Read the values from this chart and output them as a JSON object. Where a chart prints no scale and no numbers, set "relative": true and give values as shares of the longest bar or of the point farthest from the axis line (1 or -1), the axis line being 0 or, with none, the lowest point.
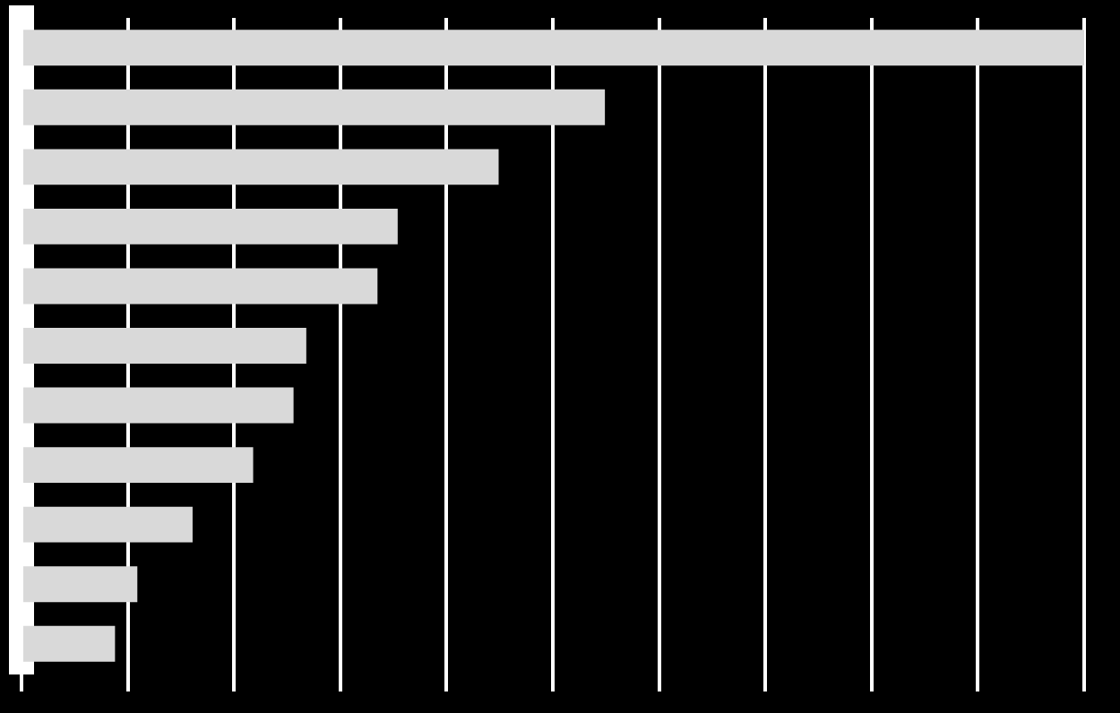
{
  "chart_data": {
    "type": "bar",
    "orientation": "horizontal",
    "relative": true,
    "grid": "x",
    "legend": false,
    "categories": [
      null,
      null,
      null,
      null,
      null,
      null,
      null,
      null,
      null,
      null,
      null
    ],
    "values": [
      1,
      0.549,
      0.449,
      0.354,
      0.335,
      0.268,
      0.256,
      0.218,
      0.161,
      0.109,
      0.088
    ],
    "color": "#d9d9d9"
  }
}
